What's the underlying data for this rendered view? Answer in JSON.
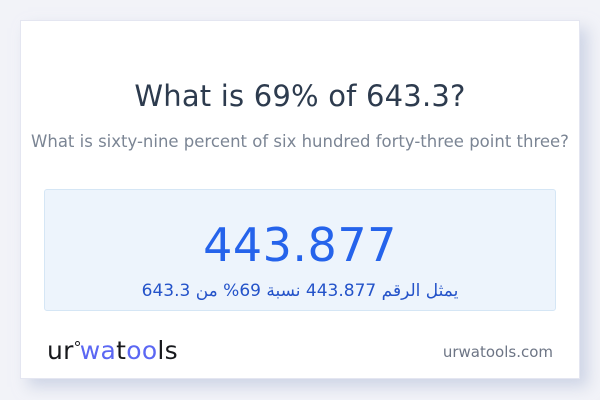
{
  "title": "What is 69% of 643.3?",
  "subtitle": "What is sixty-nine percent of six hundred forty-three point three?",
  "result": {
    "value": "443.877",
    "caption_ar": "يمثل الرقم 443.877 نسبة 69% من 643.3"
  },
  "footer": {
    "logo": {
      "seg1": "ur",
      "seg2": "wa",
      "seg3": "t",
      "seg4": "oo",
      "seg5": "ls"
    },
    "site_url": "urwatools.com"
  },
  "colors": {
    "accent_blue": "#2563eb",
    "arabic_blue": "#2453c9",
    "logo_blue": "#5b67f3",
    "logo_dark": "#17181c",
    "result_box_bg": "#edf4fc",
    "result_box_border": "#d5e6f5",
    "page_bg": "#f2f3f8"
  }
}
